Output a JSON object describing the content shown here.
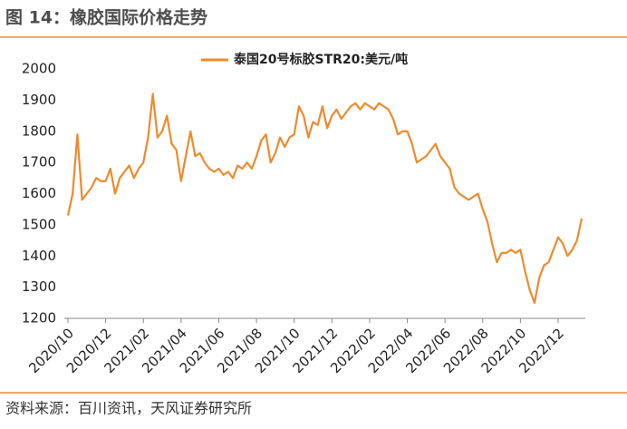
{
  "chart_data": {
    "type": "line",
    "title": "图 14：橡胶国际价格走势",
    "source": "资料来源：百川资讯，天风证券研究所",
    "categories": [
      "2020/10",
      null,
      null,
      null,
      null,
      null,
      null,
      null,
      "2020/12",
      null,
      null,
      null,
      null,
      null,
      null,
      null,
      "2021/02",
      null,
      null,
      null,
      null,
      null,
      null,
      null,
      "2021/04",
      null,
      null,
      null,
      null,
      null,
      null,
      null,
      "2021/06",
      null,
      null,
      null,
      null,
      null,
      null,
      null,
      "2021/08",
      null,
      null,
      null,
      null,
      null,
      null,
      null,
      "2021/10",
      null,
      null,
      null,
      null,
      null,
      null,
      null,
      "2021/12",
      null,
      null,
      null,
      null,
      null,
      null,
      null,
      "2022/02",
      null,
      null,
      null,
      null,
      null,
      null,
      null,
      "2022/04",
      null,
      null,
      null,
      null,
      null,
      null,
      null,
      "2022/06",
      null,
      null,
      null,
      null,
      null,
      null,
      null,
      "2022/08",
      null,
      null,
      null,
      null,
      null,
      null,
      null,
      "2022/10",
      null,
      null,
      null,
      null,
      null,
      null,
      null,
      "2022/12",
      null,
      null,
      null,
      null,
      null
    ],
    "series": [
      {
        "name": "泰国20号标胶STR20:美元/吨",
        "color": "#ee8a2e",
        "values": [
          1530,
          1600,
          1790,
          1580,
          1600,
          1620,
          1650,
          1640,
          1640,
          1680,
          1600,
          1650,
          1670,
          1690,
          1650,
          1680,
          1700,
          1780,
          1920,
          1780,
          1800,
          1850,
          1760,
          1740,
          1640,
          1720,
          1800,
          1720,
          1730,
          1700,
          1680,
          1670,
          1680,
          1660,
          1670,
          1650,
          1690,
          1680,
          1700,
          1680,
          1720,
          1770,
          1790,
          1700,
          1730,
          1780,
          1750,
          1780,
          1790,
          1880,
          1850,
          1780,
          1830,
          1820,
          1880,
          1810,
          1850,
          1870,
          1840,
          1860,
          1880,
          1890,
          1870,
          1890,
          1880,
          1870,
          1890,
          1880,
          1870,
          1840,
          1790,
          1800,
          1800,
          1760,
          1700,
          1710,
          1720,
          1740,
          1760,
          1720,
          1700,
          1680,
          1620,
          1600,
          1590,
          1580,
          1590,
          1600,
          1550,
          1510,
          1440,
          1380,
          1410,
          1410,
          1420,
          1410,
          1420,
          1350,
          1290,
          1250,
          1330,
          1370,
          1380,
          1420,
          1460,
          1440,
          1400,
          1420,
          1450,
          1520
        ]
      }
    ],
    "ylim": [
      1200,
      2000
    ],
    "yticks": [
      1200,
      1300,
      1400,
      1500,
      1600,
      1700,
      1800,
      1900,
      2000
    ],
    "legend": "top"
  }
}
